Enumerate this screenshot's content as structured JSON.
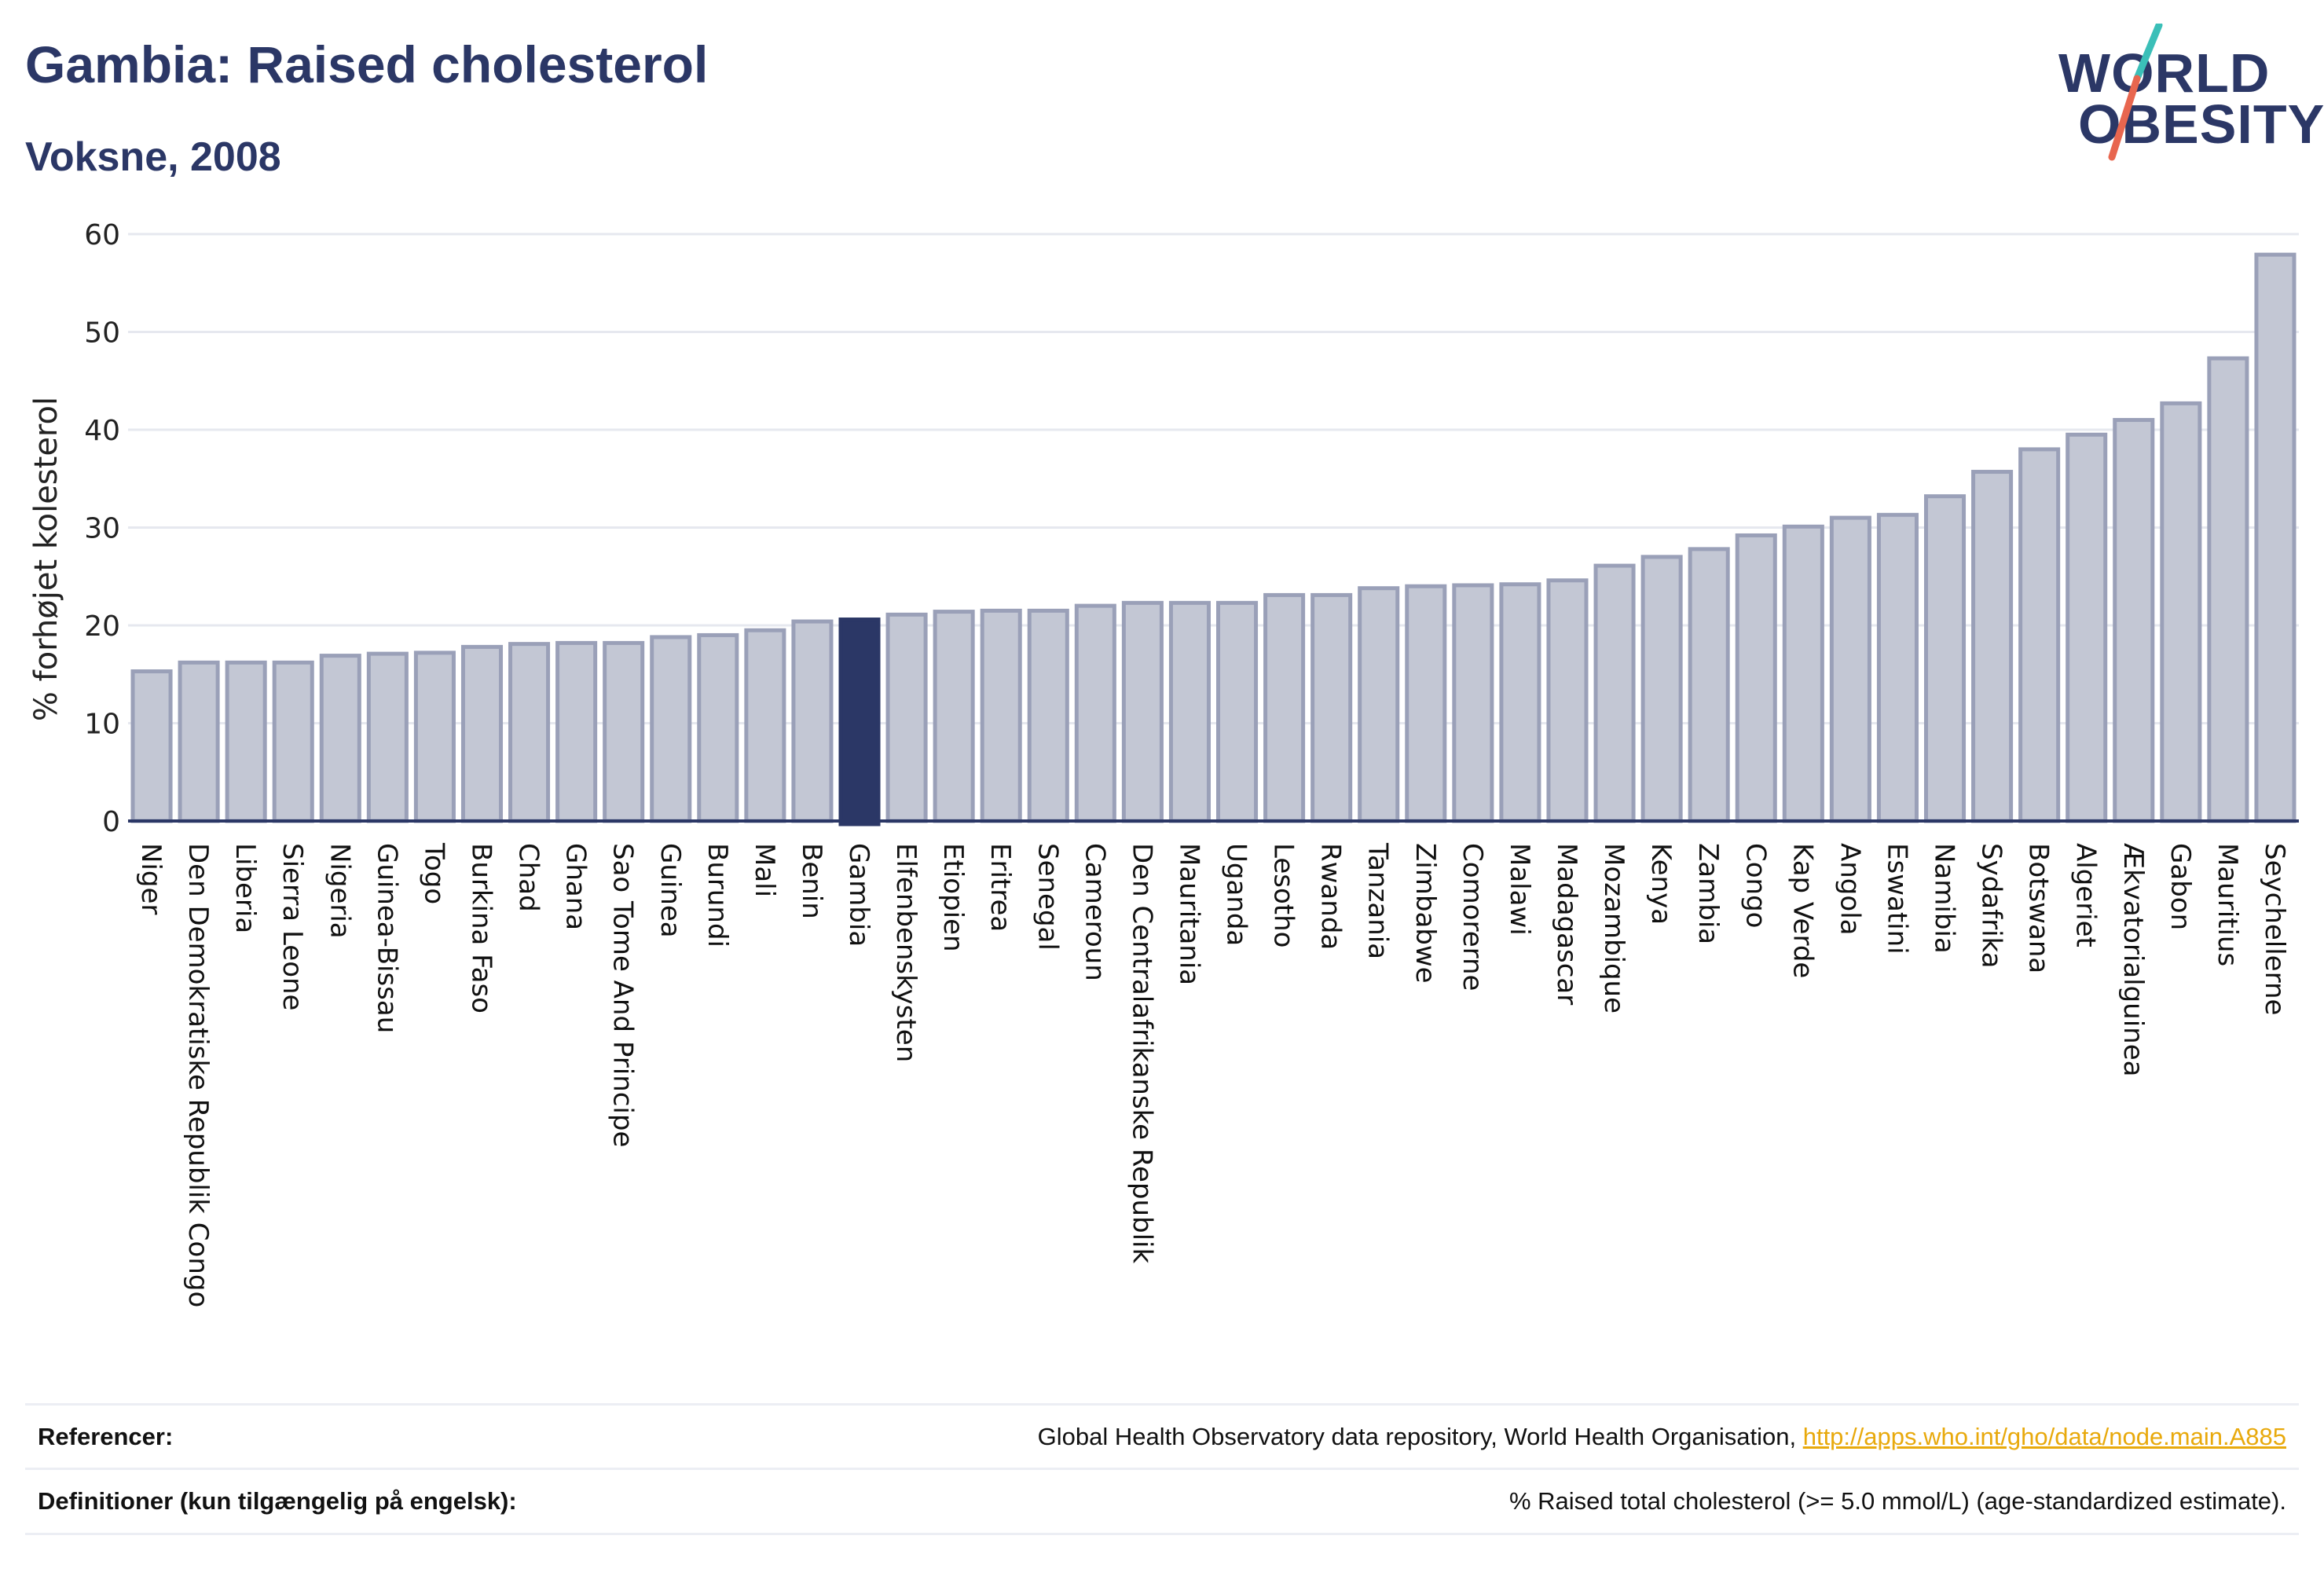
{
  "header": {
    "title": "Gambia: Raised cholesterol",
    "subtitle": "Voksne, 2008"
  },
  "logo": {
    "line1": "WORLD",
    "line2": "OBESITY",
    "colors": {
      "text": "#2b3766",
      "slash_top": "#3bbfb8",
      "slash_bottom": "#e8664f"
    }
  },
  "chart_data": {
    "type": "bar",
    "ylabel": "% forhøjet kolesterol",
    "xlabel": "",
    "ylim": [
      0,
      60
    ],
    "yticks": [
      0,
      10,
      20,
      30,
      40,
      50,
      60
    ],
    "grid": true,
    "highlight": "Gambia",
    "colors": {
      "bar": "#c3c7d4",
      "bar_edge": "#9aa0b8",
      "highlight": "#2b3766",
      "axis": "#2b3766"
    },
    "categories": [
      "Niger",
      "Den Demokratiske Republik Congo",
      "Liberia",
      "Sierra Leone",
      "Nigeria",
      "Guinea-Bissau",
      "Togo",
      "Burkina Faso",
      "Chad",
      "Ghana",
      "Sao Tome And Principe",
      "Guinea",
      "Burundi",
      "Mali",
      "Benin",
      "Gambia",
      "Elfenbenskysten",
      "Etiopien",
      "Eritrea",
      "Senegal",
      "Cameroun",
      "Den Centralafrikanske Republik",
      "Mauritania",
      "Uganda",
      "Lesotho",
      "Rwanda",
      "Tanzania",
      "Zimbabwe",
      "Comorerne",
      "Malawi",
      "Madagascar",
      "Mozambique",
      "Kenya",
      "Zambia",
      "Congo",
      "Kap Verde",
      "Angola",
      "Eswatini",
      "Namibia",
      "Sydafrika",
      "Botswana",
      "Algeriet",
      "Ækvatorialguinea",
      "Gabon",
      "Mauritius",
      "Seychellerne"
    ],
    "values": [
      15.3,
      16.2,
      16.2,
      16.2,
      16.9,
      17.1,
      17.2,
      17.8,
      18.1,
      18.2,
      18.2,
      18.8,
      19.0,
      19.5,
      20.4,
      20.6,
      21.1,
      21.4,
      21.5,
      21.5,
      22.0,
      22.3,
      22.3,
      22.3,
      23.1,
      23.1,
      23.8,
      24.0,
      24.1,
      24.2,
      24.6,
      26.1,
      27.0,
      27.8,
      29.2,
      30.1,
      31.0,
      31.3,
      33.2,
      35.7,
      38.0,
      39.5,
      41.0,
      42.7,
      47.3,
      57.9
    ]
  },
  "footer": {
    "references_label": "Referencer:",
    "references_text": "Global Health Observatory data repository, World Health Organisation,",
    "references_link": "http://apps.who.int/gho/data/node.main.A885",
    "definitions_label": "Definitioner (kun tilgængelig på engelsk):",
    "definitions_text": "% Raised total cholesterol (>= 5.0 mmol/L) (age-standardized estimate)."
  }
}
